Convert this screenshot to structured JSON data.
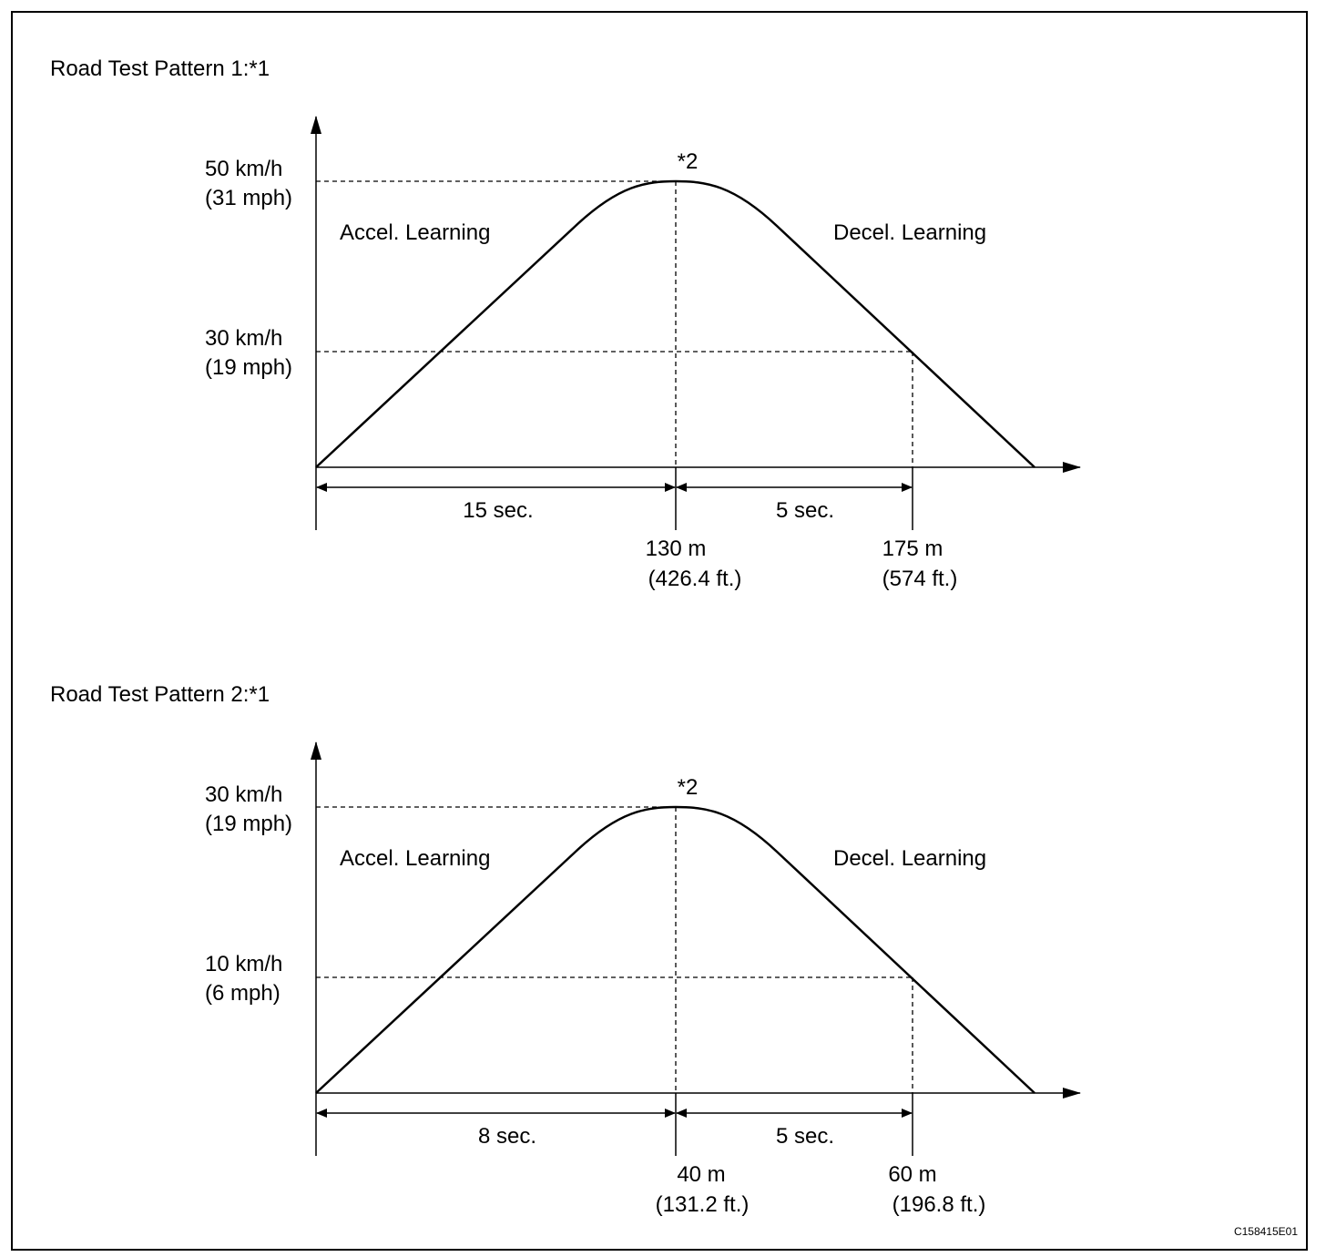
{
  "figure_id": "C158415E01",
  "patterns": [
    {
      "title": "Road Test Pattern 1:*1",
      "peak_note": "*2",
      "speed_labels": [
        [
          "50 km/h",
          "(31 mph)"
        ],
        [
          "30 km/h",
          "(19 mph)"
        ]
      ],
      "phases": [
        "Accel. Learning",
        "Decel. Learning"
      ],
      "durations": [
        "15 sec.",
        "5 sec."
      ],
      "distances": [
        [
          "130 m",
          "(426.4 ft.)"
        ],
        [
          "175 m",
          "(574 ft.)"
        ]
      ]
    },
    {
      "title": "Road Test Pattern 2:*1",
      "peak_note": "*2",
      "speed_labels": [
        [
          "30 km/h",
          "(19 mph)"
        ],
        [
          "10 km/h",
          "(6 mph)"
        ]
      ],
      "phases": [
        "Accel. Learning",
        "Decel. Learning"
      ],
      "durations": [
        "8 sec.",
        "5 sec."
      ],
      "distances": [
        [
          "40 m",
          "(131.2 ft.)"
        ],
        [
          "60 m",
          "(196.8 ft.)"
        ]
      ]
    }
  ]
}
